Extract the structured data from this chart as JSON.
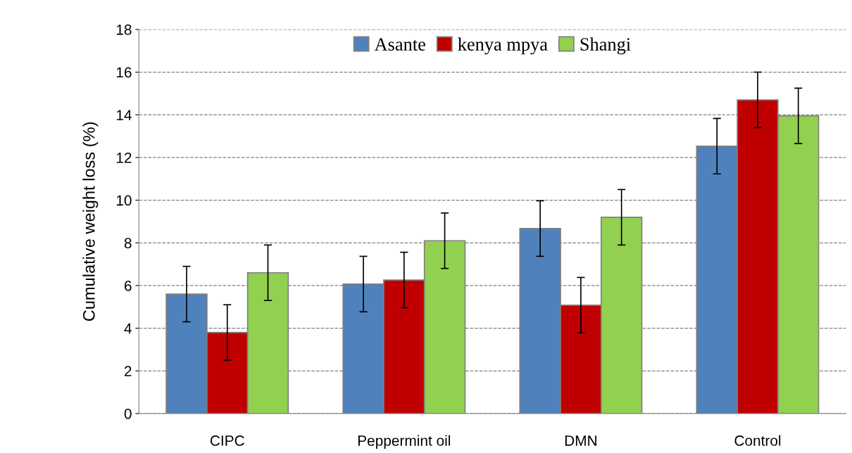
{
  "chart_data": {
    "type": "bar",
    "ylabel": "Cumulative weight loss (%)",
    "categories": [
      "CIPC",
      "Peppermint oil",
      "DMN",
      "Control"
    ],
    "series": [
      {
        "name": "Asante",
        "color": "#4f81bd",
        "values": [
          5.6,
          6.07,
          8.67,
          12.53
        ],
        "errors": [
          1.3,
          1.3,
          1.3,
          1.3
        ]
      },
      {
        "name": "kenya mpya",
        "color": "#c00000",
        "values": [
          3.8,
          6.26,
          5.08,
          14.7
        ],
        "errors": [
          1.3,
          1.3,
          1.3,
          1.3
        ]
      },
      {
        "name": "Shangi",
        "color": "#92d050",
        "values": [
          6.6,
          8.1,
          9.2,
          13.95
        ],
        "errors": [
          1.3,
          1.3,
          1.3,
          1.3
        ]
      }
    ],
    "ylim": [
      0,
      18
    ],
    "yticks": [
      0,
      2,
      4,
      6,
      8,
      10,
      12,
      14,
      16,
      18
    ],
    "grid": "y",
    "legend": "top"
  }
}
